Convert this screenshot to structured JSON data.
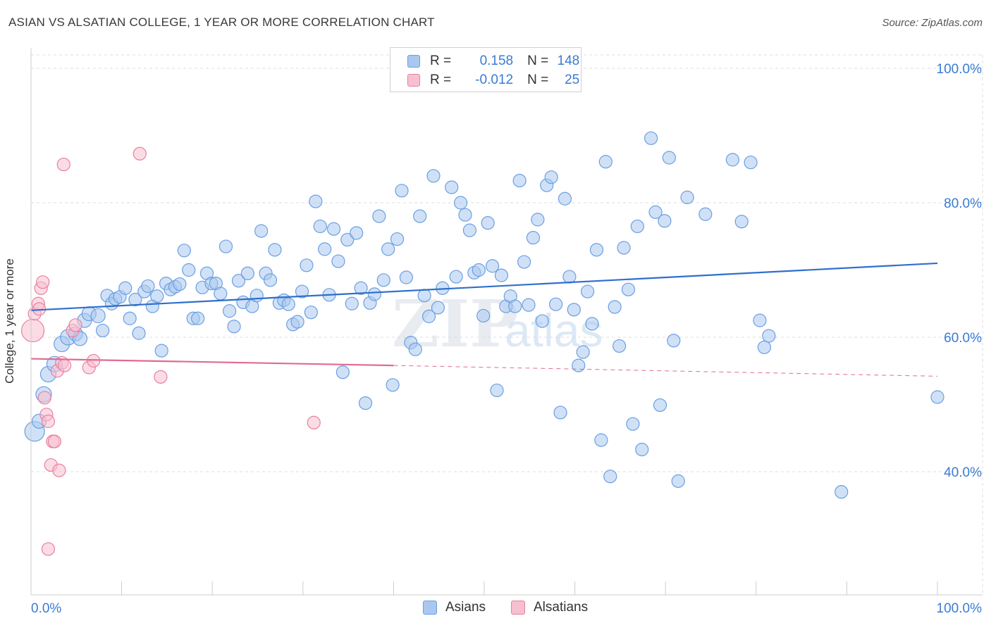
{
  "title": "ASIAN VS ALSATIAN COLLEGE, 1 YEAR OR MORE CORRELATION CHART",
  "source": "Source: ZipAtlas.com",
  "watermark": {
    "zip": "ZIP",
    "atlas": "atlas"
  },
  "legend": {
    "rows": [
      {
        "r_label": "R =",
        "r_value": "0.158",
        "n_label": "N =",
        "n_value": "148",
        "color": "#a9c8f0",
        "border": "#6a9fe0"
      },
      {
        "r_label": "R =",
        "r_value": "-0.012",
        "n_label": "N =",
        "n_value": "25",
        "color": "#f7bfd0",
        "border": "#e8809f"
      }
    ]
  },
  "bottom_legend": {
    "asians": "Asians",
    "alsatians": "Alsatians"
  },
  "chart_data": {
    "type": "scatter",
    "xlabel": "",
    "ylabel": "College, 1 year or more",
    "xlim": [
      0,
      100
    ],
    "ylim": [
      20,
      102
    ],
    "x_tick_labels": [
      {
        "value": 0,
        "label": "0.0%"
      },
      {
        "value": 100,
        "label": "100.0%"
      }
    ],
    "y_tick_labels": [
      {
        "value": 100,
        "label": "100.0%"
      },
      {
        "value": 80,
        "label": "80.0%"
      },
      {
        "value": 60,
        "label": "60.0%"
      },
      {
        "value": 40,
        "label": "40.0%"
      }
    ],
    "grid": true,
    "legend_position": "top-center",
    "series": [
      {
        "name": "Asians",
        "color": "#a9c8f0",
        "stroke": "#6a9fe0",
        "trend": {
          "x": [
            0,
            100
          ],
          "y": [
            64.0,
            71.0
          ],
          "color": "#2e6fcc"
        },
        "points": [
          [
            0.4,
            46,
            14
          ],
          [
            0.9,
            47.5,
            10
          ],
          [
            1.4,
            51.5,
            11
          ],
          [
            1.9,
            54.5,
            11
          ],
          [
            2.6,
            56,
            11
          ],
          [
            3.4,
            59,
            11
          ],
          [
            4.1,
            60,
            11
          ],
          [
            4.9,
            60.5,
            10
          ],
          [
            5.4,
            59.8,
            10
          ],
          [
            5.9,
            62.5,
            10
          ],
          [
            6.4,
            63.5,
            10
          ],
          [
            7.4,
            63.2,
            10
          ],
          [
            7.9,
            61,
            9
          ],
          [
            8.4,
            66.2,
            9
          ],
          [
            8.9,
            65,
            9
          ],
          [
            9.3,
            65.7,
            9
          ],
          [
            9.8,
            66,
            9
          ],
          [
            10.4,
            67.3,
            9
          ],
          [
            10.9,
            62.8,
            9
          ],
          [
            11.5,
            65.6,
            9
          ],
          [
            11.9,
            60.6,
            9
          ],
          [
            12.5,
            66.8,
            9
          ],
          [
            12.9,
            67.6,
            9
          ],
          [
            13.4,
            64.6,
            9
          ],
          [
            13.9,
            66.1,
            9
          ],
          [
            14.4,
            58,
            9
          ],
          [
            14.9,
            68,
            9
          ],
          [
            15.4,
            67.1,
            9
          ],
          [
            15.9,
            67.5,
            9
          ],
          [
            16.4,
            67.9,
            9
          ],
          [
            16.9,
            72.9,
            9
          ],
          [
            17.4,
            70,
            9
          ],
          [
            17.9,
            62.8,
            9
          ],
          [
            18.4,
            62.8,
            9
          ],
          [
            18.9,
            67.4,
            9
          ],
          [
            19.4,
            69.5,
            9
          ],
          [
            19.9,
            68,
            9
          ],
          [
            20.4,
            68,
            9
          ],
          [
            20.9,
            66.5,
            9
          ],
          [
            21.5,
            73.5,
            9
          ],
          [
            21.9,
            63.9,
            9
          ],
          [
            22.4,
            61.6,
            9
          ],
          [
            22.9,
            68.4,
            9
          ],
          [
            23.4,
            65.2,
            9
          ],
          [
            23.9,
            69.5,
            9
          ],
          [
            24.4,
            64.6,
            9
          ],
          [
            24.9,
            66.2,
            9
          ],
          [
            25.4,
            75.8,
            9
          ],
          [
            25.9,
            69.5,
            9
          ],
          [
            26.4,
            68.5,
            9
          ],
          [
            26.9,
            73,
            9
          ],
          [
            27.4,
            65.1,
            9
          ],
          [
            27.9,
            65.5,
            9
          ],
          [
            28.4,
            64.9,
            9
          ],
          [
            28.9,
            61.9,
            9
          ],
          [
            29.4,
            62.3,
            9
          ],
          [
            29.9,
            66.8,
            9
          ],
          [
            30.4,
            70.7,
            9
          ],
          [
            30.9,
            63.7,
            9
          ],
          [
            31.4,
            80.2,
            9
          ],
          [
            31.9,
            76.5,
            9
          ],
          [
            32.4,
            73.1,
            9
          ],
          [
            32.9,
            66.3,
            9
          ],
          [
            33.4,
            76.1,
            9
          ],
          [
            33.9,
            71.3,
            9
          ],
          [
            34.4,
            54.8,
            9
          ],
          [
            34.9,
            74.5,
            9
          ],
          [
            35.4,
            65,
            9
          ],
          [
            35.9,
            75.5,
            9
          ],
          [
            36.4,
            67.3,
            9
          ],
          [
            36.9,
            50.2,
            9
          ],
          [
            37.4,
            65.1,
            9
          ],
          [
            37.9,
            66.4,
            9
          ],
          [
            38.4,
            78,
            9
          ],
          [
            38.9,
            68.5,
            9
          ],
          [
            39.4,
            73.1,
            9
          ],
          [
            39.9,
            52.9,
            9
          ],
          [
            40.4,
            74.6,
            9
          ],
          [
            40.9,
            81.8,
            9
          ],
          [
            41.4,
            68.9,
            9
          ],
          [
            41.9,
            59.2,
            9
          ],
          [
            42.4,
            58.2,
            9
          ],
          [
            42.9,
            78,
            9
          ],
          [
            43.4,
            66.2,
            9
          ],
          [
            43.9,
            63.1,
            9
          ],
          [
            44.4,
            84,
            9
          ],
          [
            44.9,
            64.4,
            9
          ],
          [
            45.4,
            67.3,
            9
          ],
          [
            46.4,
            82.3,
            9
          ],
          [
            46.9,
            69,
            9
          ],
          [
            47.4,
            80,
            9
          ],
          [
            47.9,
            78.2,
            9
          ],
          [
            48.4,
            75.9,
            9
          ],
          [
            48.9,
            69.6,
            9
          ],
          [
            49.4,
            70,
            9
          ],
          [
            49.9,
            63.2,
            9
          ],
          [
            50.4,
            77,
            9
          ],
          [
            50.9,
            70.6,
            9
          ],
          [
            51.4,
            52.1,
            9
          ],
          [
            51.9,
            69.2,
            9
          ],
          [
            52.4,
            64.6,
            9
          ],
          [
            52.9,
            66.1,
            9
          ],
          [
            53.4,
            64.6,
            9
          ],
          [
            53.9,
            83.3,
            9
          ],
          [
            54.4,
            71.2,
            9
          ],
          [
            54.9,
            64.8,
            9
          ],
          [
            55.4,
            74.8,
            9
          ],
          [
            55.9,
            77.5,
            9
          ],
          [
            56.4,
            62.4,
            9
          ],
          [
            56.9,
            82.6,
            9
          ],
          [
            57.4,
            83.8,
            9
          ],
          [
            57.9,
            64.9,
            9
          ],
          [
            58.4,
            48.8,
            9
          ],
          [
            58.9,
            80.6,
            9
          ],
          [
            59.4,
            69,
            9
          ],
          [
            59.9,
            64.1,
            9
          ],
          [
            60.4,
            55.8,
            9
          ],
          [
            60.9,
            57.8,
            9
          ],
          [
            61.4,
            66.8,
            9
          ],
          [
            61.9,
            62,
            9
          ],
          [
            62.4,
            73,
            9
          ],
          [
            62.9,
            44.7,
            9
          ],
          [
            63.4,
            86.1,
            9
          ],
          [
            63.9,
            39.3,
            9
          ],
          [
            64.4,
            64.5,
            9
          ],
          [
            64.9,
            58.7,
            9
          ],
          [
            65.4,
            73.3,
            9
          ],
          [
            65.9,
            67.1,
            9
          ],
          [
            66.4,
            47.1,
            9
          ],
          [
            66.9,
            76.5,
            9
          ],
          [
            67.4,
            43.3,
            9
          ],
          [
            68.4,
            89.6,
            9
          ],
          [
            68.9,
            78.6,
            9
          ],
          [
            69.4,
            49.9,
            9
          ],
          [
            69.9,
            77.3,
            9
          ],
          [
            70.4,
            86.7,
            9
          ],
          [
            70.9,
            59.5,
            9
          ],
          [
            71.4,
            38.6,
            9
          ],
          [
            72.4,
            80.8,
            9
          ],
          [
            74.4,
            78.3,
            9
          ],
          [
            77.4,
            86.4,
            9
          ],
          [
            78.4,
            77.2,
            9
          ],
          [
            79.4,
            86,
            9
          ],
          [
            80.4,
            62.5,
            9
          ],
          [
            80.9,
            58.5,
            9
          ],
          [
            81.4,
            60.2,
            9
          ],
          [
            89.4,
            37,
            9
          ],
          [
            100,
            51.1,
            9
          ]
        ]
      },
      {
        "name": "Alsatians",
        "color": "#f7bfd0",
        "stroke": "#e8809f",
        "trend": {
          "x": [
            0,
            40,
            100
          ],
          "y": [
            56.8,
            55.8,
            54.2
          ],
          "color": "#e06a94"
        },
        "points": [
          [
            0.2,
            61,
            16
          ],
          [
            0.4,
            63.5,
            9
          ],
          [
            0.8,
            65,
            9
          ],
          [
            0.9,
            64.2,
            9
          ],
          [
            1.1,
            67.3,
            9
          ],
          [
            1.3,
            68.2,
            9
          ],
          [
            1.5,
            51,
            9
          ],
          [
            1.7,
            48.5,
            9
          ],
          [
            1.9,
            47.5,
            9
          ],
          [
            2.2,
            41,
            9
          ],
          [
            2.4,
            44.5,
            9
          ],
          [
            2.6,
            44.5,
            9
          ],
          [
            2.9,
            55,
            9
          ],
          [
            3.1,
            40.2,
            9
          ],
          [
            3.4,
            56.2,
            9
          ],
          [
            3.7,
            55.8,
            9
          ],
          [
            3.6,
            85.7,
            9
          ],
          [
            4.6,
            61,
            9
          ],
          [
            4.9,
            61.8,
            9
          ],
          [
            6.4,
            55.5,
            9
          ],
          [
            6.9,
            56.5,
            9
          ],
          [
            12.0,
            87.3,
            9
          ],
          [
            14.3,
            54.1,
            9
          ],
          [
            31.2,
            47.3,
            9
          ],
          [
            1.9,
            28.5,
            9
          ]
        ]
      }
    ]
  }
}
